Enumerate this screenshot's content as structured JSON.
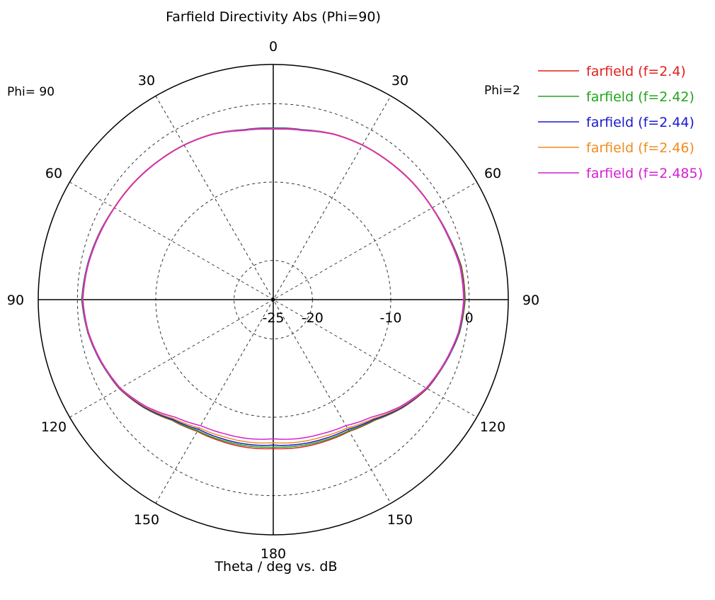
{
  "chart_data": {
    "type": "polar",
    "title": "Farfield Directivity Abs (Phi=90)",
    "xlabel": "Theta / deg vs. dB",
    "phi_left_label": "Phi= 90",
    "phi_right_label": "Phi=2",
    "angle_labels": [
      "0",
      "30",
      "60",
      "90",
      "120",
      "150",
      "180",
      "150",
      "120",
      "90",
      "60",
      "30"
    ],
    "radial_labels": [
      "-25",
      "-20",
      "-10",
      "0"
    ],
    "radial_range_db": [
      -25,
      5
    ],
    "grid": true,
    "legend_position": "top-right",
    "theta_deg": [
      0,
      10,
      20,
      30,
      40,
      50,
      60,
      70,
      80,
      90,
      100,
      110,
      120,
      130,
      140,
      150,
      160,
      170,
      180
    ],
    "series": [
      {
        "name": "farfield (f=2.4)",
        "color": "#e0201d",
        "right_db": [
          -3.2,
          -3.05,
          -2.5,
          -2.2,
          -2.0,
          -1.75,
          -1.55,
          -1.2,
          -0.6,
          -0.5,
          -0.85,
          -1.6,
          -2.3,
          -3.5,
          -4.9,
          -5.6,
          -5.75,
          -5.85,
          -6.0
        ],
        "left_db": [
          -3.2,
          -3.05,
          -2.5,
          -2.2,
          -2.0,
          -1.75,
          -1.55,
          -1.2,
          -0.9,
          -0.7,
          -0.95,
          -1.6,
          -2.3,
          -3.5,
          -4.9,
          -5.6,
          -5.75,
          -5.85,
          -6.0
        ]
      },
      {
        "name": "farfield (f=2.42)",
        "color": "#1fa61a",
        "right_db": [
          -3.1,
          -3.0,
          -2.5,
          -2.2,
          -2.0,
          -1.75,
          -1.55,
          -1.2,
          -0.65,
          -0.55,
          -0.85,
          -1.6,
          -2.35,
          -3.55,
          -4.95,
          -5.7,
          -5.9,
          -6.05,
          -6.2
        ],
        "left_db": [
          -3.1,
          -3.0,
          -2.5,
          -2.2,
          -2.0,
          -1.75,
          -1.55,
          -1.2,
          -0.85,
          -0.55,
          -0.95,
          -1.6,
          -2.35,
          -3.55,
          -4.95,
          -5.7,
          -5.9,
          -6.05,
          -6.2
        ]
      },
      {
        "name": "farfield (f=2.44)",
        "color": "#1a1acc",
        "right_db": [
          -3.15,
          -3.0,
          -2.5,
          -2.2,
          -2.0,
          -1.75,
          -1.55,
          -1.2,
          -0.7,
          -0.6,
          -0.9,
          -1.6,
          -2.35,
          -3.6,
          -5.05,
          -5.9,
          -6.1,
          -6.25,
          -6.45
        ],
        "left_db": [
          -3.15,
          -3.0,
          -2.5,
          -2.2,
          -2.0,
          -1.75,
          -1.55,
          -1.2,
          -0.85,
          -0.6,
          -0.95,
          -1.6,
          -2.35,
          -3.6,
          -5.05,
          -5.9,
          -6.1,
          -6.25,
          -6.45
        ]
      },
      {
        "name": "farfield (f=2.46)",
        "color": "#f08c1e",
        "right_db": [
          -3.2,
          -3.05,
          -2.5,
          -2.2,
          -2.0,
          -1.75,
          -1.55,
          -1.25,
          -0.75,
          -0.65,
          -0.95,
          -1.65,
          -2.4,
          -3.7,
          -5.2,
          -6.1,
          -6.4,
          -6.55,
          -6.75
        ],
        "left_db": [
          -3.2,
          -3.05,
          -2.5,
          -2.2,
          -2.0,
          -1.75,
          -1.55,
          -1.25,
          -0.9,
          -0.65,
          -1.0,
          -1.65,
          -2.4,
          -3.7,
          -5.2,
          -6.1,
          -6.4,
          -6.55,
          -6.75
        ]
      },
      {
        "name": "farfield (f=2.485)",
        "color": "#d41fd0",
        "right_db": [
          -3.25,
          -3.1,
          -2.55,
          -2.25,
          -2.05,
          -1.8,
          -1.6,
          -1.3,
          -0.8,
          -0.7,
          -1.0,
          -1.7,
          -2.45,
          -3.8,
          -5.45,
          -6.45,
          -6.8,
          -7.0,
          -7.25
        ],
        "left_db": [
          -3.25,
          -3.1,
          -2.55,
          -2.25,
          -2.05,
          -1.8,
          -1.6,
          -1.3,
          -0.95,
          -0.7,
          -1.05,
          -1.7,
          -2.45,
          -3.8,
          -5.45,
          -6.45,
          -6.8,
          -7.0,
          -7.25
        ]
      }
    ]
  }
}
